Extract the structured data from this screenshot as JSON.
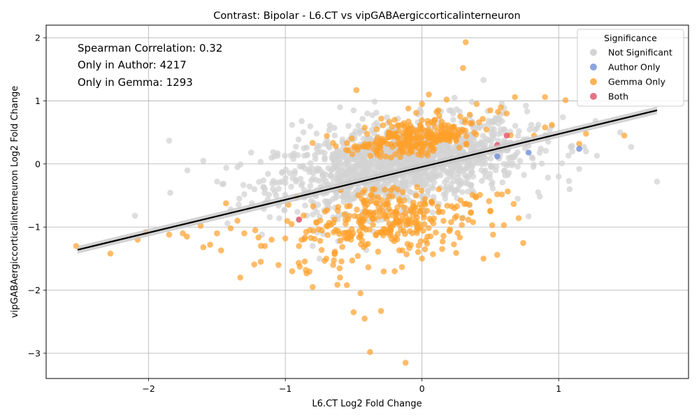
{
  "chart_data": {
    "type": "scatter",
    "title": "Contrast: Bipolar - L6.CT vs vipGABAergiccorticalinterneuron",
    "xlabel": "L6.CT Log2 Fold Change",
    "ylabel": "vipGABAergiccorticalinterneuron Log2 Fold Change",
    "xlim": [
      -2.75,
      1.95
    ],
    "ylim": [
      -3.4,
      2.2
    ],
    "x_ticks": [
      -2,
      -1,
      0,
      1
    ],
    "y_ticks": [
      -3,
      -2,
      -1,
      0,
      1,
      2
    ],
    "x_tick_labels": [
      "−2",
      "−1",
      "0",
      "1"
    ],
    "y_tick_labels": [
      "−3",
      "−2",
      "−1",
      "0",
      "1",
      "2"
    ],
    "grid": true,
    "annotations": [
      "Spearman Correlation: 0.32",
      "Only in Author: 4217",
      "Only in Gemma: 1293"
    ],
    "legend": {
      "title": "Significance",
      "placement": "top-right",
      "entries": [
        {
          "label": "Not Significant",
          "color": "#d3d3d3"
        },
        {
          "label": "Author Only",
          "color": "#6f8fd8"
        },
        {
          "label": "Gemma Only",
          "color": "#ff9f2a"
        },
        {
          "label": "Both",
          "color": "#e0506a"
        }
      ]
    },
    "regression": {
      "x": [
        -2.52,
        1.72
      ],
      "y": [
        -1.36,
        0.85
      ],
      "color": "#000000",
      "band_color": "#c8c8c8"
    },
    "series": [
      {
        "name": "Not Significant",
        "color": "#d3d3d3",
        "cloud": {
          "center": [
            -0.15,
            0.0
          ],
          "spread": [
            0.45,
            0.32
          ],
          "count": 1400
        },
        "points": [
          [
            -2.1,
            -0.82
          ],
          [
            -1.85,
            0.37
          ],
          [
            -1.35,
            -0.05
          ],
          [
            -1.25,
            0.18
          ],
          [
            -1.1,
            0.1
          ],
          [
            -0.95,
            0.62
          ],
          [
            -1.3,
            -0.48
          ],
          [
            -1.15,
            -0.4
          ],
          [
            -0.88,
            0.68
          ],
          [
            -0.6,
            0.9
          ],
          [
            -0.4,
            0.8
          ],
          [
            0.45,
            1.33
          ],
          [
            0.8,
            0.62
          ],
          [
            0.95,
            0.6
          ],
          [
            1.1,
            0.2
          ],
          [
            1.2,
            0.2
          ],
          [
            1.28,
            0.13
          ],
          [
            1.45,
            0.5
          ],
          [
            1.53,
            0.27
          ],
          [
            1.72,
            -0.28
          ],
          [
            1.08,
            -0.4
          ],
          [
            1.15,
            -0.08
          ],
          [
            0.85,
            -0.45
          ],
          [
            0.7,
            -0.55
          ],
          [
            0.3,
            -0.85
          ],
          [
            0.78,
            -0.83
          ],
          [
            -0.8,
            -1.3
          ],
          [
            -0.75,
            -1.5
          ],
          [
            -1.4,
            -0.72
          ],
          [
            -1.6,
            0.05
          ],
          [
            -1.0,
            -0.3
          ],
          [
            -0.5,
            0.85
          ],
          [
            0.2,
            0.85
          ],
          [
            0.55,
            0.72
          ],
          [
            1.0,
            -0.2
          ]
        ]
      },
      {
        "name": "Author Only",
        "color": "#6f8fd8",
        "points": [
          [
            0.78,
            0.18
          ],
          [
            1.15,
            0.24
          ],
          [
            0.55,
            0.12
          ]
        ]
      },
      {
        "name": "Gemma Only",
        "color": "#ff9f2a",
        "cloud_up": {
          "center": [
            -0.05,
            0.4
          ],
          "spread": [
            0.25,
            0.15
          ],
          "count": 260
        },
        "cloud_down": {
          "center": [
            -0.25,
            -0.9
          ],
          "spread": [
            0.35,
            0.3
          ],
          "count": 320
        },
        "points": [
          [
            -2.53,
            -1.3
          ],
          [
            -2.28,
            -1.42
          ],
          [
            -2.02,
            -1.08
          ],
          [
            -2.08,
            -1.2
          ],
          [
            -1.85,
            -1.12
          ],
          [
            -1.75,
            -1.1
          ],
          [
            -1.72,
            -1.15
          ],
          [
            -1.62,
            -0.98
          ],
          [
            -1.6,
            -1.32
          ],
          [
            -1.55,
            -1.28
          ],
          [
            -1.5,
            -1.1
          ],
          [
            -1.47,
            -1.37
          ],
          [
            -1.4,
            -1.02
          ],
          [
            -1.35,
            -0.9
          ],
          [
            -1.33,
            -1.8
          ],
          [
            -1.3,
            -1.1
          ],
          [
            -1.22,
            -1.05
          ],
          [
            -1.18,
            -1.55
          ],
          [
            -1.15,
            -1.3
          ],
          [
            -1.1,
            -1.2
          ],
          [
            -1.05,
            -1.6
          ],
          [
            -1.0,
            -1.18
          ],
          [
            -0.95,
            -1.7
          ],
          [
            -0.9,
            -1.3
          ],
          [
            -0.85,
            -1.68
          ],
          [
            -0.8,
            -1.95
          ],
          [
            -0.7,
            -1.5
          ],
          [
            -0.65,
            -1.6
          ],
          [
            -0.6,
            -1.8
          ],
          [
            -0.55,
            -1.92
          ],
          [
            -0.5,
            -2.35
          ],
          [
            -0.45,
            -2.05
          ],
          [
            -0.42,
            -2.45
          ],
          [
            -0.38,
            -2.98
          ],
          [
            -0.3,
            -2.33
          ],
          [
            -0.12,
            -3.15
          ],
          [
            -0.48,
            1.17
          ],
          [
            0.32,
            1.93
          ],
          [
            0.3,
            1.52
          ],
          [
            0.05,
            1.1
          ],
          [
            0.18,
            1.02
          ],
          [
            0.4,
            0.95
          ],
          [
            0.5,
            0.85
          ],
          [
            0.62,
            0.8
          ],
          [
            0.68,
            1.06
          ],
          [
            0.9,
            1.06
          ],
          [
            1.05,
            1.01
          ],
          [
            0.82,
            0.45
          ],
          [
            0.9,
            0.58
          ],
          [
            0.95,
            0.62
          ],
          [
            1.15,
            0.32
          ],
          [
            1.2,
            0.48
          ],
          [
            1.48,
            0.45
          ],
          [
            0.6,
            -0.97
          ],
          [
            0.55,
            -1.44
          ],
          [
            0.52,
            -1.12
          ],
          [
            0.45,
            -1.5
          ],
          [
            0.25,
            -1.41
          ],
          [
            0.08,
            -1.43
          ],
          [
            0.0,
            -1.5
          ],
          [
            -0.2,
            -1.7
          ],
          [
            0.5,
            -0.75
          ],
          [
            0.55,
            -0.48
          ],
          [
            0.0,
            0.95
          ],
          [
            -0.1,
            0.88
          ],
          [
            0.12,
            0.85
          ],
          [
            -0.2,
            0.7
          ],
          [
            0.28,
            0.75
          ]
        ]
      },
      {
        "name": "Both",
        "color": "#e0506a",
        "points": [
          [
            -0.9,
            -0.88
          ],
          [
            0.62,
            0.45
          ],
          [
            0.55,
            0.3
          ]
        ]
      }
    ]
  }
}
